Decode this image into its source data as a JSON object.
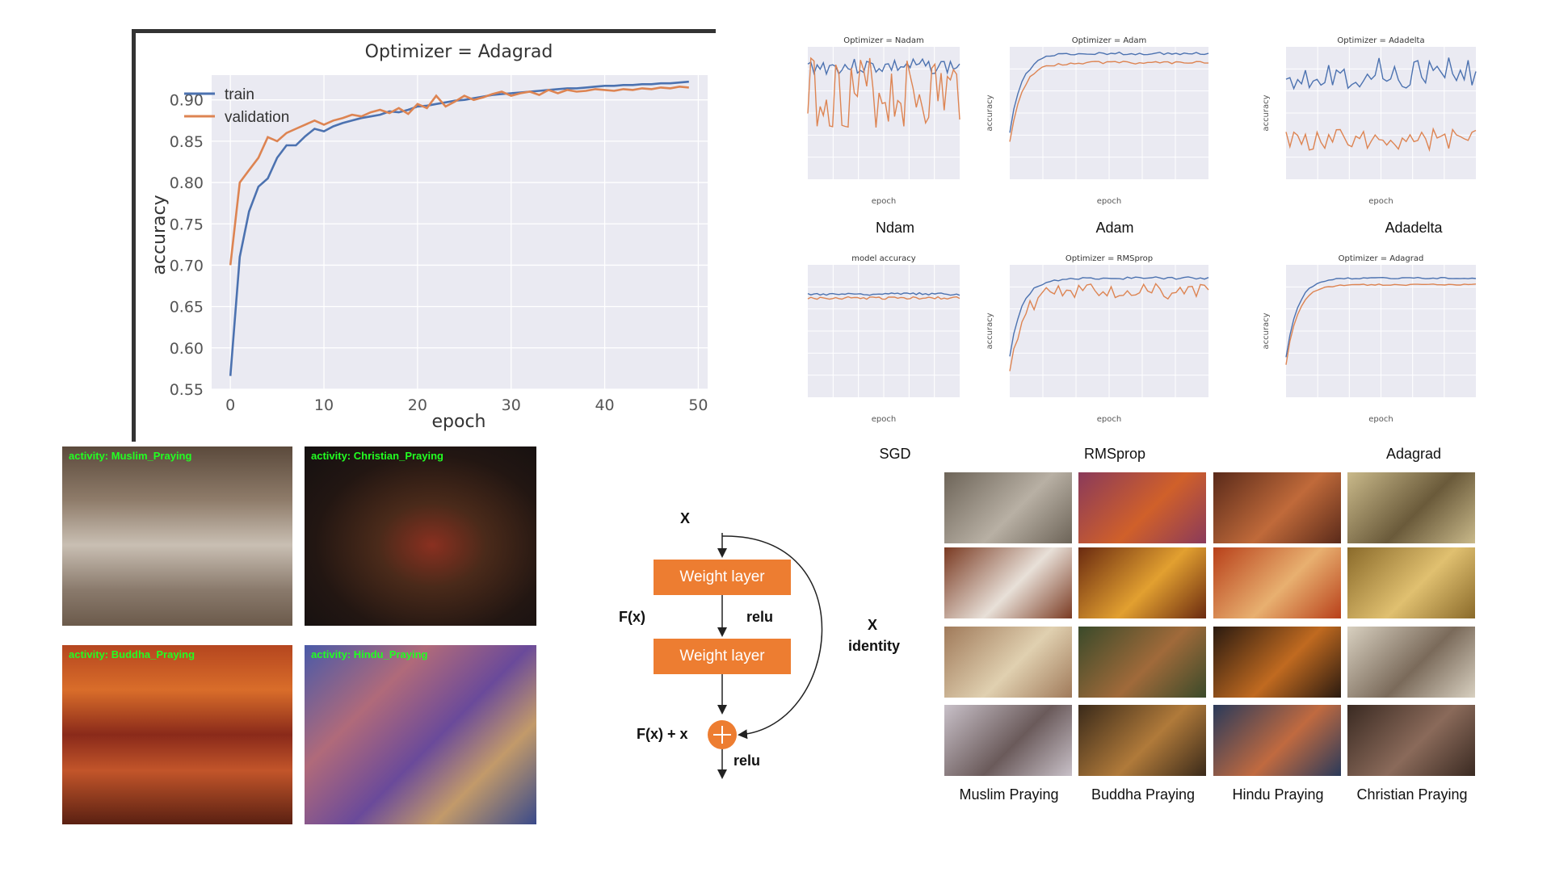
{
  "main_chart": {
    "title": "Optimizer = Adagrad",
    "xlabel": "epoch",
    "ylabel": "accuracy",
    "legend": [
      "train",
      "validation"
    ],
    "xticks": [
      "0",
      "10",
      "20",
      "30",
      "40",
      "50"
    ],
    "yticks": [
      "0.55",
      "0.60",
      "0.65",
      "0.70",
      "0.75",
      "0.80",
      "0.85",
      "0.90"
    ]
  },
  "small_charts": [
    {
      "title": "Optimizer = Nadam",
      "caption": "Ndam",
      "xlabel": "epoch"
    },
    {
      "title": "Optimizer = Adam",
      "caption": "Adam",
      "xlabel": "epoch",
      "ylabel": "accuracy"
    },
    {
      "title": "Optimizer = Adadelta",
      "caption": "Adadelta",
      "xlabel": "epoch",
      "ylabel": "accuracy"
    },
    {
      "title": "model accuracy",
      "caption": "SGD",
      "xlabel": "epoch"
    },
    {
      "title": "Optimizer = RMSprop",
      "caption": "RMSprop",
      "xlabel": "epoch",
      "ylabel": "accuracy"
    },
    {
      "title": "Optimizer = Adagrad",
      "caption": "Adagrad",
      "xlabel": "epoch",
      "ylabel": "accuracy"
    }
  ],
  "chart_data": [
    {
      "type": "line",
      "title": "Optimizer = Adagrad",
      "xlabel": "epoch",
      "ylabel": "accuracy",
      "xlim": [
        -2,
        51
      ],
      "ylim": [
        0.55,
        0.93
      ],
      "grid": true,
      "legend": "top-left",
      "x": [
        0,
        1,
        2,
        3,
        4,
        5,
        6,
        7,
        8,
        9,
        10,
        11,
        12,
        13,
        14,
        15,
        16,
        17,
        18,
        19,
        20,
        21,
        22,
        23,
        24,
        25,
        26,
        27,
        28,
        29,
        30,
        31,
        32,
        33,
        34,
        35,
        36,
        37,
        38,
        39,
        40,
        41,
        42,
        43,
        44,
        45,
        46,
        47,
        48,
        49
      ],
      "series": [
        {
          "name": "train",
          "color": "#4c72b0",
          "values": [
            0.566,
            0.71,
            0.765,
            0.795,
            0.805,
            0.83,
            0.845,
            0.845,
            0.856,
            0.865,
            0.862,
            0.868,
            0.872,
            0.875,
            0.878,
            0.88,
            0.882,
            0.886,
            0.885,
            0.888,
            0.892,
            0.893,
            0.895,
            0.897,
            0.899,
            0.9,
            0.902,
            0.904,
            0.906,
            0.907,
            0.908,
            0.909,
            0.91,
            0.911,
            0.912,
            0.913,
            0.914,
            0.914,
            0.915,
            0.916,
            0.917,
            0.917,
            0.918,
            0.918,
            0.919,
            0.919,
            0.92,
            0.92,
            0.921,
            0.922
          ]
        },
        {
          "name": "validation",
          "color": "#dd8452",
          "values": [
            0.7,
            0.8,
            0.815,
            0.83,
            0.855,
            0.85,
            0.86,
            0.865,
            0.87,
            0.875,
            0.87,
            0.875,
            0.878,
            0.882,
            0.88,
            0.885,
            0.888,
            0.884,
            0.89,
            0.883,
            0.895,
            0.89,
            0.905,
            0.892,
            0.898,
            0.905,
            0.9,
            0.903,
            0.907,
            0.91,
            0.905,
            0.908,
            0.91,
            0.906,
            0.912,
            0.908,
            0.912,
            0.91,
            0.911,
            0.913,
            0.912,
            0.911,
            0.913,
            0.912,
            0.914,
            0.913,
            0.915,
            0.914,
            0.916,
            0.915
          ]
        }
      ]
    }
  ],
  "photos": [
    {
      "tag": "activity:  Muslim_Praying"
    },
    {
      "tag": "activity:  Christian_Praying"
    },
    {
      "tag": "activity:  Buddha_Praying"
    },
    {
      "tag": "activity:  Hindu_Praying"
    }
  ],
  "diagram": {
    "input": "X",
    "layer1": "Weight layer",
    "layer2": "Weight layer",
    "fx": "F(x)",
    "relu1": "relu",
    "skip_x": "X",
    "identity": "identity",
    "sum": "F(x) + x",
    "relu2": "relu"
  },
  "grid_captions": [
    "Muslim Praying",
    "Buddha Praying",
    "Hindu Praying",
    "Christian Praying"
  ],
  "colors": {
    "train": "#4c72b0",
    "validation": "#dd8452",
    "block": "#ed7d31"
  }
}
